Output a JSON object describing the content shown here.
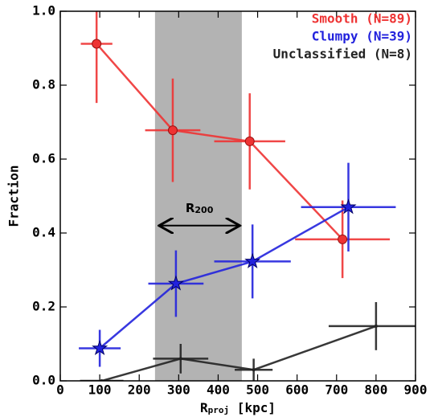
{
  "chart_data": {
    "type": "errorbar-line",
    "xlabel": {
      "text": "R",
      "sub": "proj",
      "rest": " [kpc]"
    },
    "ylabel": "Fraction",
    "xlim": [
      0,
      900
    ],
    "ylim": [
      0,
      1
    ],
    "xticks": [
      0,
      100,
      200,
      300,
      400,
      500,
      600,
      700,
      800,
      900
    ],
    "yticks": [
      {
        "value": 0,
        "label": "0.0"
      },
      {
        "value": 0.2,
        "label": "0.2"
      },
      {
        "value": 0.4,
        "label": "0.4"
      },
      {
        "value": 0.6,
        "label": "0.6"
      },
      {
        "value": 0.8,
        "label": "0.8"
      },
      {
        "value": 1,
        "label": "1.0"
      }
    ],
    "shade": [
      240,
      460
    ],
    "shade_color": "#b3b3b3",
    "arrow": {
      "x": [
        250,
        455
      ],
      "y": 0.42,
      "text": "R",
      "sub": "200"
    },
    "series": [
      {
        "name": "Smooth (N=89)",
        "color": "#ee3333",
        "marker": "circle",
        "x": [
          92,
          285,
          480,
          715
        ],
        "xerr": [
          40,
          70,
          90,
          120
        ],
        "values": [
          0.912,
          0.678,
          0.648,
          0.383
        ],
        "yerr": [
          0.16,
          0.14,
          0.13,
          0.105
        ]
      },
      {
        "name": "Clumpy (N=39)",
        "color": "#2222dd",
        "marker": "star",
        "x": [
          100,
          293,
          487,
          730
        ],
        "xerr": [
          53,
          70,
          97,
          120
        ],
        "values": [
          0.088,
          0.263,
          0.323,
          0.47
        ],
        "yerr": [
          0.05,
          0.09,
          0.1,
          0.12
        ]
      },
      {
        "name": "Unclassified (N=8)",
        "color": "#222222",
        "marker": "plus",
        "x": [
          105,
          305,
          490,
          800
        ],
        "xerr": [
          55,
          70,
          48,
          120
        ],
        "values": [
          0,
          0.06,
          0.03,
          0.148
        ],
        "yerr": [
          0,
          0.04,
          0.03,
          0.065
        ]
      }
    ]
  }
}
